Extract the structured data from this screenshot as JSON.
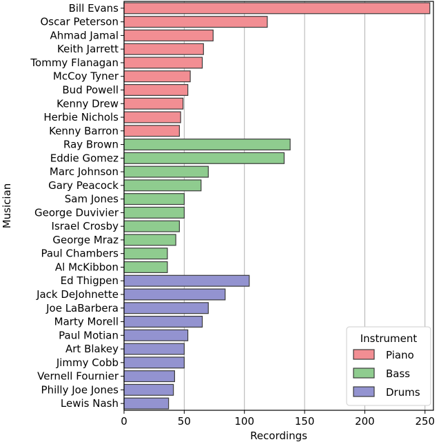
{
  "chart_data": {
    "type": "bar",
    "orientation": "horizontal",
    "xlabel": "Recordings",
    "ylabel": "Musician",
    "xlim": [
      0,
      257
    ],
    "xticks": [
      0,
      50,
      100,
      150,
      200,
      250
    ],
    "grid": "vertical",
    "legend": {
      "title": "Instrument",
      "placement": "bottom-right",
      "entries": [
        {
          "name": "Piano",
          "color": "#f28e93"
        },
        {
          "name": "Bass",
          "color": "#8fcc8f"
        },
        {
          "name": "Drums",
          "color": "#9393d0"
        }
      ]
    },
    "categories": [
      "Bill Evans",
      "Oscar Peterson",
      "Ahmad Jamal",
      "Keith Jarrett",
      "Tommy Flanagan",
      "McCoy Tyner",
      "Bud Powell",
      "Kenny Drew",
      "Herbie Nichols",
      "Kenny Barron",
      "Ray Brown",
      "Eddie Gomez",
      "Marc Johnson",
      "Gary Peacock",
      "Sam Jones",
      "George Duvivier",
      "Israel Crosby",
      "George Mraz",
      "Paul Chambers",
      "Al McKibbon",
      "Ed Thigpen",
      "Jack DeJohnette",
      "Joe LaBarbera",
      "Marty Morell",
      "Paul Motian",
      "Art Blakey",
      "Jimmy Cobb",
      "Vernell Fournier",
      "Philly Joe Jones",
      "Lewis Nash"
    ],
    "values": [
      254,
      119,
      74,
      66,
      65,
      55,
      53,
      49,
      47,
      46,
      138,
      133,
      70,
      64,
      50,
      50,
      46,
      43,
      36,
      36,
      104,
      84,
      70,
      65,
      53,
      50,
      50,
      42,
      41,
      37
    ],
    "groups": [
      "Piano",
      "Piano",
      "Piano",
      "Piano",
      "Piano",
      "Piano",
      "Piano",
      "Piano",
      "Piano",
      "Piano",
      "Bass",
      "Bass",
      "Bass",
      "Bass",
      "Bass",
      "Bass",
      "Bass",
      "Bass",
      "Bass",
      "Bass",
      "Drums",
      "Drums",
      "Drums",
      "Drums",
      "Drums",
      "Drums",
      "Drums",
      "Drums",
      "Drums",
      "Drums"
    ]
  }
}
